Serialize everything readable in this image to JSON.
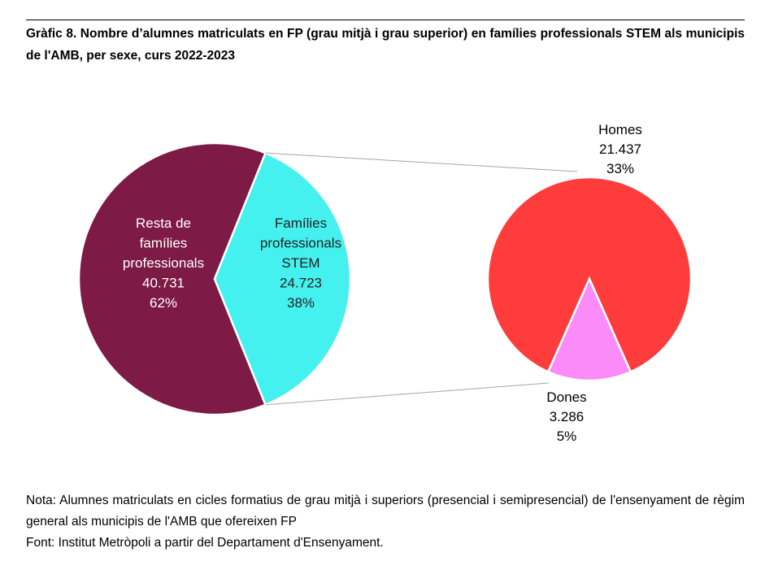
{
  "title": "Gràfic 8. Nombre d’alumnes matriculats en FP (grau mitjà i grau superior) en famílies professionals STEM als municipis de l'AMB, per sexe, curs 2022-2023",
  "note": "Nota: Alumnes matriculats en cicles formatius de grau mitjà i superiors (presencial i semipresencial) de l'ensenyament de règim general als municipis de l'AMB que ofereixen FP",
  "source": "Font: Institut Metròpoli a partir del Departament d'Ensenyament.",
  "chart_data": {
    "type": "pie",
    "variant": "pie-of-pie",
    "main_pie": {
      "slices": [
        {
          "label": "Resta de famílies professionals",
          "value": 40731,
          "value_label": "40.731",
          "pct": "62%",
          "color": "#7d1a45"
        },
        {
          "label": "Famílies professionals STEM",
          "value": 24723,
          "value_label": "24.723",
          "pct": "38%",
          "color": "#45f1ef"
        }
      ]
    },
    "sub_pie": {
      "breaks_down": "Famílies professionals STEM",
      "slices": [
        {
          "label": "Homes",
          "value": 21437,
          "value_label": "21.437",
          "pct": "33%",
          "color": "#fe3c3c"
        },
        {
          "label": "Dones",
          "value": 3286,
          "value_label": "3.286",
          "pct": "5%",
          "color": "#fb8bf8"
        }
      ]
    }
  }
}
